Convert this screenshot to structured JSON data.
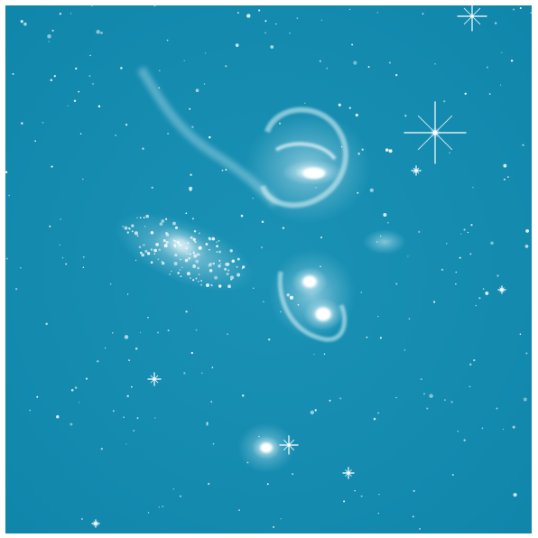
{
  "image": {
    "subject": "galaxy-group-deep-field",
    "colors": {
      "background": "#0f85aa",
      "background_center": "#1a92b5",
      "glow": "#e9f7fb",
      "core": "#ffffff",
      "star": "#f4fbfd"
    }
  }
}
